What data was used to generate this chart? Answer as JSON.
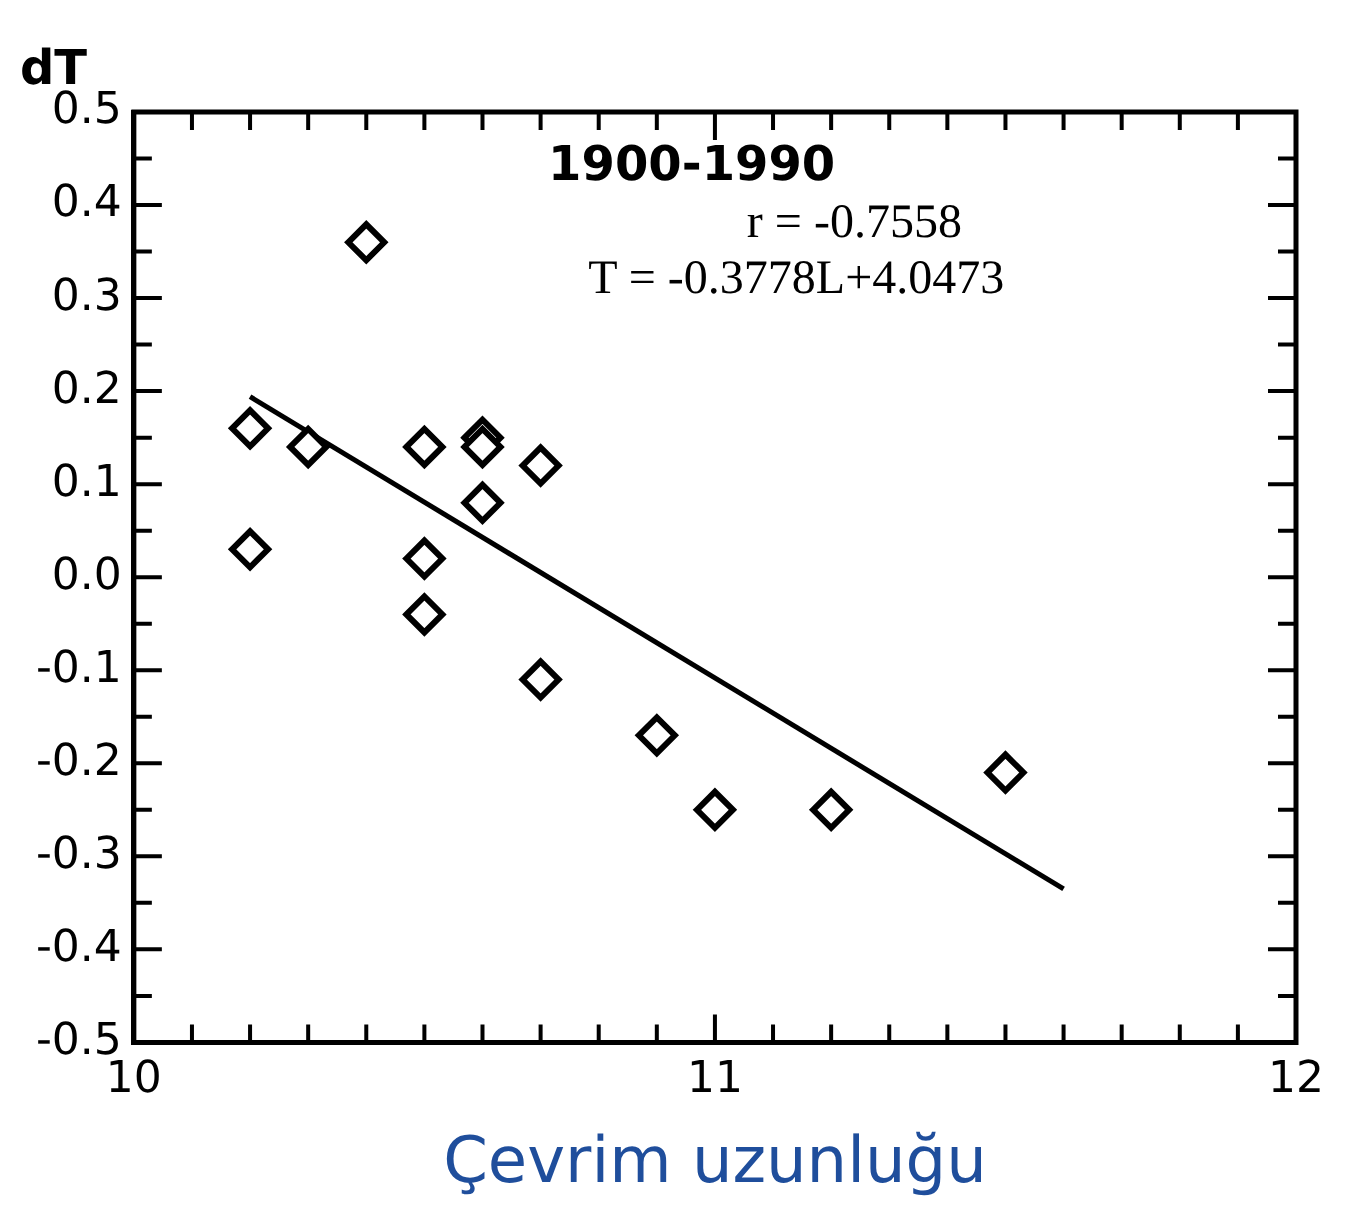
{
  "chart_data": {
    "type": "scatter",
    "ylabel": "dT",
    "xlabel": "Çevrim uzunluğu",
    "annotations": [
      "1900-1990",
      "r = -0.7558",
      "T = -0.3778L+4.0473"
    ],
    "xlim": [
      10,
      12
    ],
    "xticks": [
      10,
      {
        "value": 10.1,
        "label": null
      },
      {
        "value": 10.2,
        "label": null
      },
      {
        "value": 10.3,
        "label": null
      },
      {
        "value": 10.4,
        "label": null
      },
      {
        "value": 10.5,
        "label": null
      },
      {
        "value": 10.6,
        "label": null
      },
      {
        "value": 10.7,
        "label": null
      },
      {
        "value": 10.8,
        "label": null
      },
      {
        "value": 10.9,
        "label": null
      },
      11,
      {
        "value": 11.1,
        "label": null
      },
      {
        "value": 11.2,
        "label": null
      },
      {
        "value": 11.3,
        "label": null
      },
      {
        "value": 11.4,
        "label": null
      },
      {
        "value": 11.5,
        "label": null
      },
      {
        "value": 11.6,
        "label": null
      },
      {
        "value": 11.7,
        "label": null
      },
      {
        "value": 11.8,
        "label": null
      },
      {
        "value": 11.9,
        "label": null
      },
      12
    ],
    "ylim": [
      -0.5,
      0.5
    ],
    "yticks": [
      -0.5,
      {
        "value": -0.45,
        "label": null
      },
      -0.4,
      {
        "value": -0.35,
        "label": null
      },
      -0.3,
      {
        "value": -0.25,
        "label": null
      },
      -0.2,
      {
        "value": -0.15,
        "label": null
      },
      -0.1,
      {
        "value": -0.05,
        "label": null
      },
      {
        "value": 0,
        "label": "0.0"
      },
      {
        "value": 0.05,
        "label": null
      },
      0.1,
      {
        "value": 0.15,
        "label": null
      },
      0.2,
      {
        "value": 0.25,
        "label": null
      },
      0.3,
      {
        "value": 0.35,
        "label": null
      },
      0.4,
      {
        "value": 0.45,
        "label": null
      },
      0.5
    ],
    "marker": "diamond",
    "grid": false,
    "legend": false,
    "series": [
      {
        "type": "scatter",
        "color": "#000000",
        "x": [
          10.2,
          10.2,
          10.3,
          10.4,
          10.5,
          10.5,
          10.5,
          10.6,
          10.6,
          10.6,
          10.7,
          10.7,
          10.9,
          11.0,
          11.2,
          11.5
        ],
        "values": [
          0.16,
          0.03,
          0.14,
          0.36,
          0.14,
          0.02,
          -0.04,
          0.15,
          0.14,
          0.08,
          0.12,
          -0.11,
          -0.17,
          -0.25,
          -0.25,
          -0.21
        ]
      },
      {
        "type": "line",
        "color": "#000000",
        "line_style": "solid",
        "marker": "none",
        "x": [
          10.2,
          11.6
        ],
        "values": [
          0.194,
          -0.335
        ]
      }
    ]
  }
}
